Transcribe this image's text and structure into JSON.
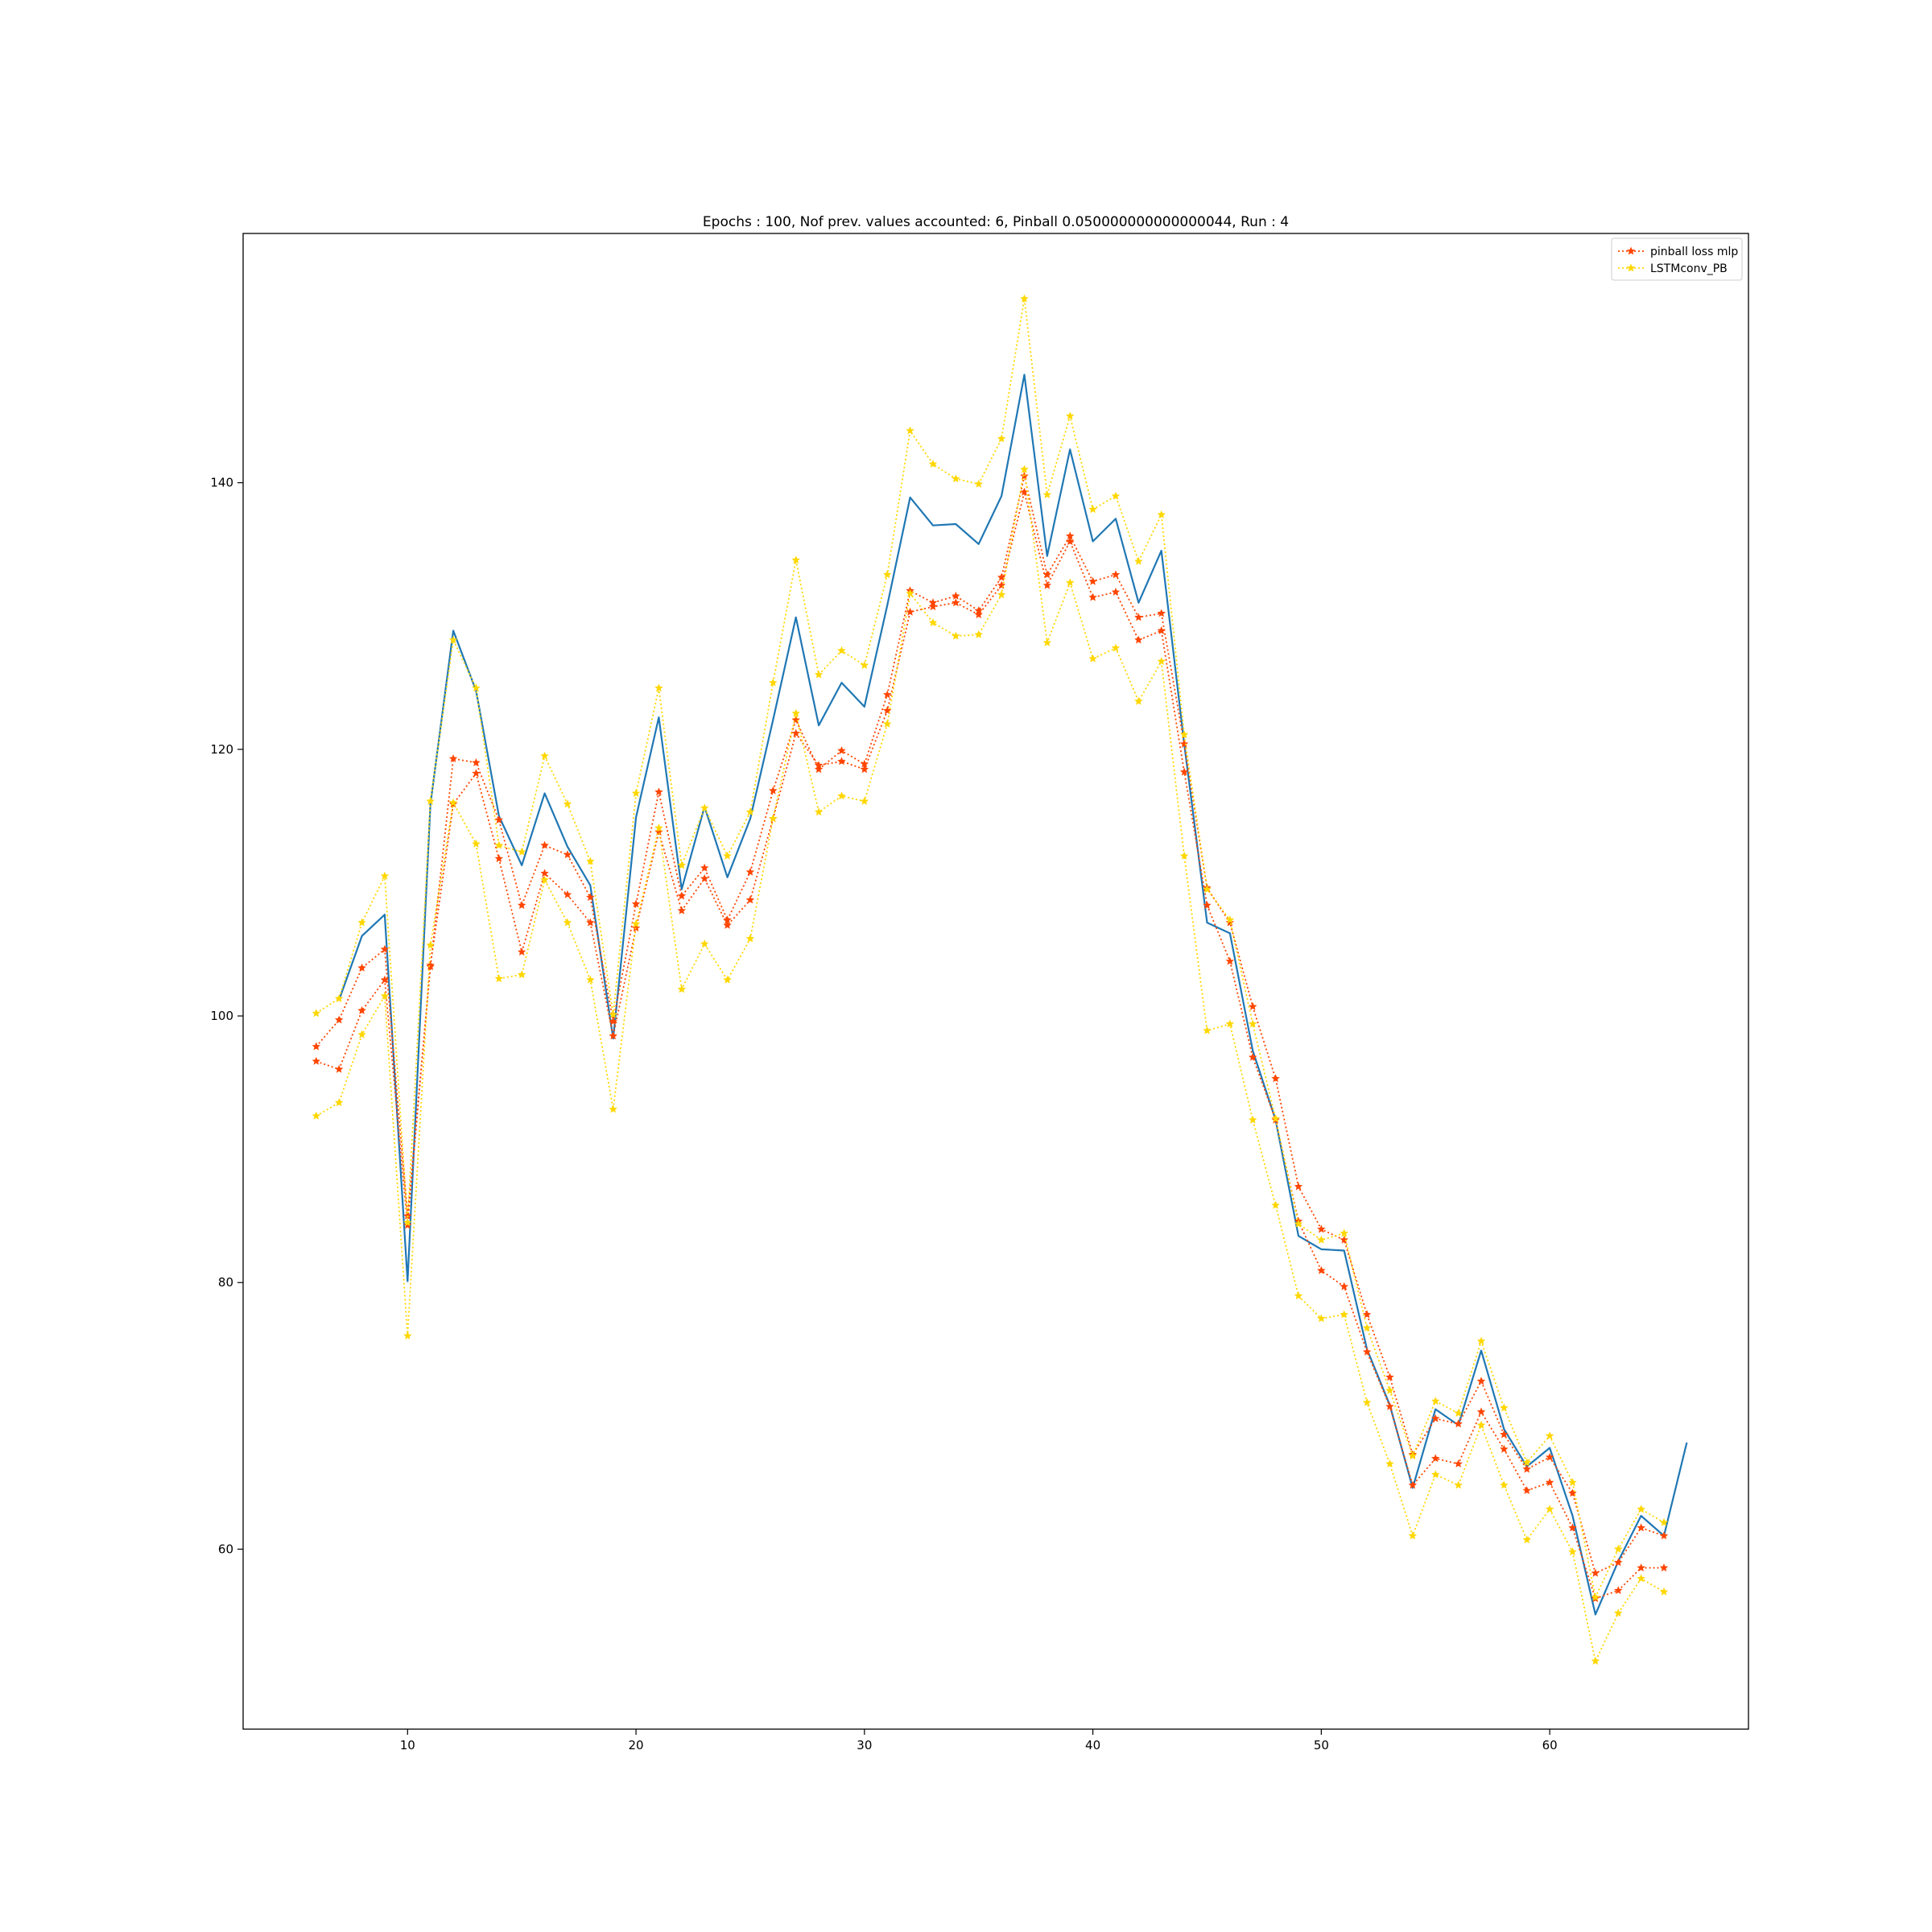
{
  "chart_data": {
    "type": "line",
    "title": "Epochs : 100, Nof prev. values accounted: 6, Pinball 0.050000000000000044, Run : 4",
    "xlabel": "",
    "ylabel": "",
    "xlim": [
      2.8,
      68.7
    ],
    "ylim": [
      46.5,
      158.7
    ],
    "xticks": [
      10,
      20,
      30,
      40,
      50,
      60
    ],
    "yticks": [
      60,
      80,
      100,
      120,
      140
    ],
    "grid": false,
    "legend_position": "top-right",
    "legend": [
      "pinball loss mlp",
      "LSTMconv_PB"
    ],
    "colors": {
      "actual": "#1f77b4",
      "pinball_mlp": "#ff4500",
      "lstm": "#ffd700"
    },
    "series": [
      {
        "style": "solid",
        "color": "#1f77b4",
        "x": [
          7,
          8,
          9,
          10,
          11,
          12,
          13,
          14,
          15,
          16,
          17,
          18,
          19,
          20,
          21,
          22,
          23,
          24,
          25,
          26,
          27,
          28,
          29,
          30,
          31,
          32,
          33,
          34,
          35,
          36,
          37,
          38,
          39,
          40,
          41,
          42,
          43,
          44,
          45,
          46,
          47,
          48,
          49,
          50,
          51,
          52,
          53,
          54,
          55,
          56,
          57,
          58,
          59,
          60,
          61,
          62,
          63,
          64,
          65,
          66
        ],
        "y": [
          101.2,
          106.0,
          107.6,
          80.1,
          115.9,
          128.9,
          124.4,
          115.0,
          111.3,
          116.7,
          112.7,
          109.8,
          98.3,
          114.9,
          122.4,
          109.5,
          115.7,
          110.4,
          114.8,
          122.2,
          129.9,
          121.8,
          125.0,
          123.2,
          130.8,
          138.9,
          136.8,
          136.9,
          135.4,
          139.0,
          148.1,
          134.5,
          142.5,
          135.6,
          137.3,
          131.0,
          134.9,
          120.4,
          107.0,
          106.2,
          97.4,
          92.2,
          83.5,
          82.5,
          82.4,
          75.0,
          70.8,
          64.6,
          70.5,
          69.3,
          74.9,
          69.0,
          66.2,
          67.6,
          62.5,
          55.1,
          59.1,
          62.5,
          61.0,
          68.0
        ]
      },
      {
        "name": "pinball loss mlp",
        "style": "dotted",
        "marker": "star",
        "color": "#ff4500",
        "x": [
          6,
          7,
          8,
          9,
          10,
          11,
          12,
          13,
          14,
          15,
          16,
          17,
          18,
          19,
          20,
          21,
          22,
          23,
          24,
          25,
          26,
          27,
          28,
          29,
          30,
          31,
          32,
          33,
          34,
          35,
          36,
          37,
          38,
          39,
          40,
          41,
          42,
          43,
          44,
          45,
          46,
          47,
          48,
          49,
          50,
          51,
          52,
          53,
          54,
          55,
          56,
          57,
          58,
          59,
          60,
          61,
          62,
          63,
          64,
          65
        ],
        "y": [
          97.7,
          99.7,
          103.6,
          105.0,
          85.0,
          103.7,
          119.3,
          119.0,
          114.7,
          108.3,
          112.8,
          112.1,
          108.9,
          99.6,
          108.4,
          116.8,
          109.0,
          111.1,
          107.2,
          110.8,
          116.9,
          122.2,
          118.5,
          119.9,
          118.9,
          124.1,
          131.9,
          131.0,
          131.5,
          130.4,
          132.9,
          140.5,
          133.1,
          136.0,
          132.6,
          133.1,
          129.9,
          130.2,
          120.4,
          109.6,
          107.0,
          100.7,
          95.3,
          87.2,
          84.0,
          83.2,
          77.6,
          72.9,
          67.1,
          69.8,
          69.4,
          72.6,
          68.6,
          66.0,
          66.9,
          64.2,
          58.2,
          59.0,
          61.6,
          61.0
        ]
      },
      {
        "style": "dotted",
        "marker": "star",
        "color": "#ff4500",
        "x": [
          6,
          7,
          8,
          9,
          10,
          11,
          12,
          13,
          14,
          15,
          16,
          17,
          18,
          19,
          20,
          21,
          22,
          23,
          24,
          25,
          26,
          27,
          28,
          29,
          30,
          31,
          32,
          33,
          34,
          35,
          36,
          37,
          38,
          39,
          40,
          41,
          42,
          43,
          44,
          45,
          46,
          47,
          48,
          49,
          50,
          51,
          52,
          53,
          54,
          55,
          56,
          57,
          58,
          59,
          60,
          61,
          62,
          63,
          64,
          65
        ],
        "y": [
          96.6,
          96.0,
          100.4,
          102.7,
          84.3,
          103.8,
          115.9,
          118.2,
          111.8,
          104.8,
          110.7,
          109.1,
          107.0,
          98.5,
          106.6,
          113.8,
          107.9,
          110.3,
          106.8,
          108.7,
          114.8,
          121.2,
          118.8,
          119.1,
          118.5,
          122.9,
          130.3,
          130.7,
          131.0,
          130.1,
          132.3,
          139.3,
          132.3,
          135.6,
          131.4,
          131.8,
          128.2,
          128.9,
          118.3,
          108.3,
          104.1,
          96.9,
          92.2,
          84.6,
          80.9,
          79.7,
          74.8,
          70.7,
          64.8,
          66.8,
          66.4,
          70.3,
          67.5,
          64.4,
          65.0,
          61.6,
          56.3,
          56.9,
          58.6,
          58.6
        ]
      },
      {
        "name": "LSTMconv_PB",
        "style": "dotted",
        "marker": "star",
        "color": "#ffd700",
        "x": [
          6,
          7,
          8,
          9,
          10,
          11,
          12,
          13,
          14,
          15,
          16,
          17,
          18,
          19,
          20,
          21,
          22,
          23,
          24,
          25,
          26,
          27,
          28,
          29,
          30,
          31,
          32,
          33,
          34,
          35,
          36,
          37,
          38,
          39,
          40,
          41,
          42,
          43,
          44,
          45,
          46,
          47,
          48,
          49,
          50,
          51,
          52,
          53,
          54,
          55,
          56,
          57,
          58,
          59,
          60,
          61,
          62,
          63,
          64,
          65
        ],
        "y": [
          100.2,
          101.3,
          107.0,
          110.5,
          84.5,
          116.1,
          128.2,
          124.6,
          112.8,
          112.3,
          119.5,
          115.9,
          111.6,
          100.1,
          116.7,
          124.6,
          111.3,
          115.6,
          112.0,
          115.3,
          125.0,
          134.2,
          125.6,
          127.4,
          126.3,
          133.1,
          143.9,
          141.4,
          140.3,
          139.9,
          143.3,
          153.8,
          139.1,
          145.0,
          138.0,
          139.0,
          134.1,
          137.6,
          121.1,
          109.5,
          107.2,
          99.4,
          92.3,
          84.4,
          83.2,
          83.7,
          76.6,
          71.9,
          67.0,
          71.1,
          70.2,
          75.6,
          70.6,
          66.5,
          68.5,
          65.0,
          56.4,
          60.0,
          63.0,
          62.0
        ]
      },
      {
        "style": "dotted",
        "marker": "star",
        "color": "#ffd700",
        "x": [
          6,
          7,
          8,
          9,
          10,
          11,
          12,
          13,
          14,
          15,
          16,
          17,
          18,
          19,
          20,
          21,
          22,
          23,
          24,
          25,
          26,
          27,
          28,
          29,
          30,
          31,
          32,
          33,
          34,
          35,
          36,
          37,
          38,
          39,
          40,
          41,
          42,
          43,
          44,
          45,
          46,
          47,
          48,
          49,
          50,
          51,
          52,
          53,
          54,
          55,
          56,
          57,
          58,
          59,
          60,
          61,
          62,
          63,
          64,
          65
        ],
        "y": [
          92.5,
          93.5,
          98.6,
          101.5,
          76.0,
          105.3,
          116.0,
          112.9,
          102.8,
          103.1,
          110.2,
          107.0,
          102.7,
          93.0,
          106.9,
          114.1,
          102.0,
          105.4,
          102.7,
          105.8,
          114.8,
          122.7,
          115.3,
          116.5,
          116.1,
          121.9,
          131.7,
          129.5,
          128.5,
          128.6,
          131.6,
          141.0,
          128.0,
          132.5,
          126.8,
          127.6,
          123.6,
          126.6,
          112.0,
          98.9,
          99.4,
          92.2,
          85.8,
          79.0,
          77.3,
          77.6,
          71.0,
          66.4,
          61.0,
          65.6,
          64.8,
          69.3,
          64.8,
          60.7,
          63.0,
          59.8,
          51.6,
          55.2,
          57.8,
          56.8
        ]
      }
    ]
  }
}
